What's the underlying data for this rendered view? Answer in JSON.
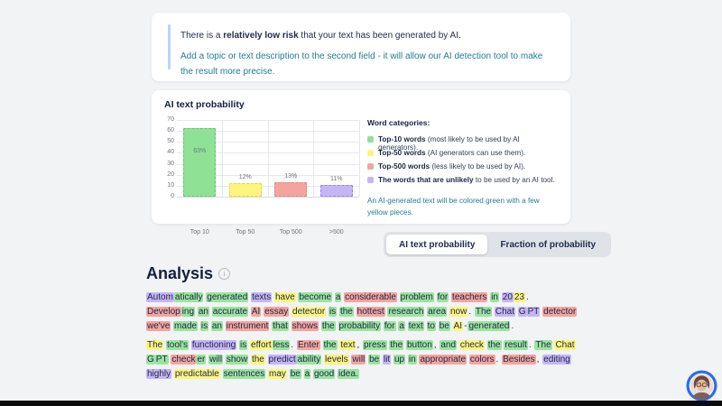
{
  "notice": {
    "line1_prefix": "There is a ",
    "line1_bold": "relatively low risk",
    "line1_suffix": " that your text has been generated by AI.",
    "line2": "Add a topic or text description to the second field - it will allow our AI detection tool to make the result more precise."
  },
  "chart_card": {
    "title": "AI text probability",
    "legend_title": "Word categories:",
    "legend": [
      {
        "color": "#8fe295",
        "bold": "Top-10 words",
        "rest": " (most likely to be used by AI generators)."
      },
      {
        "color": "#fdf57e",
        "bold": "Top-50 words",
        "rest": " (AI generators can use them)."
      },
      {
        "color": "#f4a49e",
        "bold": "Top-500 words",
        "rest": " (less likely to be used by AI)."
      },
      {
        "color": "#c6b5f4",
        "bold": "The words that are unlikely",
        "rest": " to be used by an AI tool."
      }
    ],
    "note": "An AI-generated text will be colored green with a few yellow pieces."
  },
  "chart_data": {
    "type": "bar",
    "title": "AI text probability",
    "categories": [
      "Top 10",
      "Top 50",
      "Top 500",
      ">500"
    ],
    "values": [
      63,
      12,
      13,
      11
    ],
    "labels": [
      "63%",
      "12%",
      "13%",
      "11%"
    ],
    "colors": [
      "#8fe295",
      "#fdf57e",
      "#f4a49e",
      "#c6b5f4"
    ],
    "border_colors": [
      "#69c177",
      "#e3d64f",
      "#e2837b",
      "#9c82e8"
    ],
    "xlabel": "",
    "ylabel": "",
    "ylim": [
      0,
      70
    ],
    "yticks": [
      0,
      10,
      20,
      30,
      40,
      50,
      60,
      70
    ],
    "grid": true,
    "legend_position": "right"
  },
  "tabs": [
    {
      "label": "AI text probability",
      "active": true
    },
    {
      "label": "Fraction of probability",
      "active": false
    }
  ],
  "analysis": {
    "heading": "Analysis",
    "paragraphs": [
      [
        [
          "Autom",
          "p"
        ],
        [
          "atically",
          "g",
          1
        ],
        [
          "generated",
          "g"
        ],
        [
          "texts",
          "p"
        ],
        [
          "have",
          "y"
        ],
        [
          "become",
          "g"
        ],
        [
          "a",
          "g"
        ],
        [
          "considerable",
          "r"
        ],
        [
          "problem",
          "g"
        ],
        [
          "for",
          "g"
        ],
        [
          "teachers",
          "r"
        ],
        [
          "in",
          "g"
        ],
        [
          "20",
          "p"
        ],
        [
          "23",
          "y",
          1
        ],
        [
          ".",
          "n",
          1
        ],
        [
          "Develop",
          "r"
        ],
        [
          "ing",
          "g",
          1
        ],
        [
          "an",
          "g"
        ],
        [
          "accurate",
          "g"
        ],
        [
          "AI",
          "r"
        ],
        [
          "essay",
          "r"
        ],
        [
          "detector",
          "y"
        ],
        [
          "is",
          "g"
        ],
        [
          "the",
          "g"
        ],
        [
          "hottest",
          "r"
        ],
        [
          "research",
          "g"
        ],
        [
          "area",
          "g"
        ],
        [
          "now",
          "y"
        ],
        [
          ".",
          "n",
          1
        ],
        [
          "The",
          "g"
        ],
        [
          "Chat",
          "p"
        ],
        [
          "G",
          "p"
        ],
        [
          "PT",
          "p",
          1
        ],
        [
          "detector",
          "r"
        ],
        [
          "we've",
          "r"
        ],
        [
          "made",
          "g"
        ],
        [
          "is",
          "g"
        ],
        [
          "an",
          "g"
        ],
        [
          "instrument",
          "r"
        ],
        [
          "that",
          "g"
        ],
        [
          "shows",
          "r"
        ],
        [
          "the",
          "g"
        ],
        [
          "probability",
          "g"
        ],
        [
          "for",
          "g"
        ],
        [
          "a",
          "g"
        ],
        [
          "text",
          "g"
        ],
        [
          "to",
          "g"
        ],
        [
          "be",
          "g"
        ],
        [
          "AI",
          "y"
        ],
        [
          "-",
          "n",
          1
        ],
        [
          "generated",
          "g",
          1
        ],
        [
          ".",
          "n",
          1
        ]
      ],
      [
        [
          "The",
          "y"
        ],
        [
          "tool's",
          "g"
        ],
        [
          "functioning",
          "p"
        ],
        [
          "is",
          "g"
        ],
        [
          "effort",
          "y"
        ],
        [
          "less",
          "g",
          1
        ],
        [
          ".",
          "n",
          1
        ],
        [
          "Enter",
          "r"
        ],
        [
          "the",
          "g"
        ],
        [
          "text",
          "y"
        ],
        [
          ",",
          "n",
          1
        ],
        [
          "press",
          "g"
        ],
        [
          "the",
          "g"
        ],
        [
          "button",
          "g"
        ],
        [
          ",",
          "n",
          1
        ],
        [
          "and",
          "g"
        ],
        [
          "check",
          "y"
        ],
        [
          "the",
          "g"
        ],
        [
          "result",
          "g"
        ],
        [
          ".",
          "n",
          1
        ],
        [
          "The",
          "g"
        ],
        [
          "Chat",
          "y"
        ],
        [
          "G",
          "g"
        ],
        [
          "PT",
          "g",
          1
        ],
        [
          "check",
          "r"
        ],
        [
          "er",
          "g",
          1
        ],
        [
          "will",
          "g"
        ],
        [
          "show",
          "g"
        ],
        [
          "the",
          "y"
        ],
        [
          "predict",
          "p"
        ],
        [
          "ability",
          "g",
          1
        ],
        [
          "levels",
          "y"
        ],
        [
          "will",
          "r"
        ],
        [
          "be",
          "g"
        ],
        [
          "lit",
          "p"
        ],
        [
          "up",
          "g"
        ],
        [
          "in",
          "g"
        ],
        [
          "appropriate",
          "r"
        ],
        [
          "colors",
          "r"
        ],
        [
          ".",
          "n",
          1
        ],
        [
          "Besides",
          "r"
        ],
        [
          ",",
          "n",
          1
        ],
        [
          "editing",
          "p"
        ],
        [
          "highly",
          "p"
        ],
        [
          "predictable",
          "y"
        ],
        [
          "sentences",
          "g"
        ],
        [
          "may",
          "y"
        ],
        [
          "be",
          "g"
        ],
        [
          "a",
          "g"
        ],
        [
          "good",
          "g"
        ],
        [
          "idea.",
          "g"
        ]
      ]
    ]
  },
  "highlight_colors": {
    "g": "#9be49f",
    "y": "#fdf57e",
    "r": "#f4a49e",
    "p": "#c6b5f4"
  },
  "accent_colors": {
    "teal": "#1f7f8f",
    "navy": "#13203f",
    "notice_bar": "#b9d6f2",
    "avatar_ring": "#2e6bf0"
  }
}
